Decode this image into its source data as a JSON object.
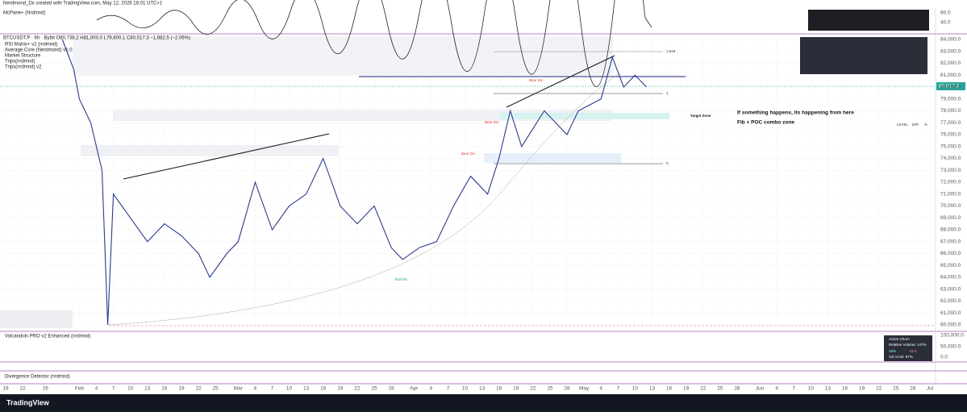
{
  "ui": {
    "credit": "Nerdmond_Dx created with TradingView.com, May 12, 2026 18:01 UTC+1",
    "top_pane": "McPane+ (Nrdmnd)",
    "top_axis": [
      "80.0",
      "40.0"
    ],
    "legend": [
      "RSI Matrix+ v2 (nrdmnd)",
      "Average Core (Nerdmond) v1.0",
      "Market Structure",
      "Trips(nrdmnd)",
      "Trips(nrdmnd) v2"
    ],
    "price_label": "80,017.3",
    "annotations": {
      "note1": "If something happens, its happening from here",
      "note2": "Fib + POC combo zone",
      "target": "Target Zone",
      "bear1": "Bear Div",
      "bear2": "Bear Div",
      "bear3": "Bear Div",
      "bull": "Bull Div",
      "fib_top": "1.618",
      "fib_mid": "1",
      "fib_low": "0"
    },
    "level_table": [
      "LEVEL",
      "D/R",
      "%"
    ],
    "volume_pane": "Volcandols PRO v2 Enhanced (nrdmnd)",
    "volume_axis": [
      "100,000.0",
      "50,000.0",
      "0.0"
    ],
    "churn": [
      "Active Churn",
      "Relative Volume: 147%",
      "49%",
      "51%",
      "Vol Accel: 87%"
    ],
    "div_pane": "Divergence Detector (nrdmnd)",
    "brand": "TradingView"
  },
  "chart_data": {
    "type": "line",
    "title": "BTCUSDT.P · 6h · Bybit  O80,738.2 H81,000.0 L79,800.1 C80,017.3 −1,682.5 (−2.06%)",
    "color": "#2a3a8f",
    "x": [
      "2026-01-29",
      "2026-01-31",
      "2026-02-01",
      "2026-02-03",
      "2026-02-05",
      "2026-02-06",
      "2026-02-07",
      "2026-02-10",
      "2026-02-13",
      "2026-02-16",
      "2026-02-19",
      "2026-02-22",
      "2026-02-24",
      "2026-02-27",
      "2026-03-01",
      "2026-03-04",
      "2026-03-07",
      "2026-03-10",
      "2026-03-13",
      "2026-03-16",
      "2026-03-19",
      "2026-03-22",
      "2026-03-25",
      "2026-03-28",
      "2026-03-30",
      "2026-04-02",
      "2026-04-05",
      "2026-04-08",
      "2026-04-11",
      "2026-04-14",
      "2026-04-16",
      "2026-04-18",
      "2026-04-20",
      "2026-04-22",
      "2026-04-24",
      "2026-04-26",
      "2026-04-28",
      "2026-04-30",
      "2026-05-02",
      "2026-05-04",
      "2026-05-06",
      "2026-05-08",
      "2026-05-10",
      "2026-05-12"
    ],
    "values": [
      84000,
      81500,
      79000,
      77000,
      73000,
      60000,
      71000,
      69000,
      67000,
      68500,
      67500,
      66000,
      64000,
      66000,
      67000,
      72000,
      68000,
      70000,
      71000,
      74000,
      70000,
      68500,
      70000,
      66500,
      65500,
      66500,
      67000,
      70000,
      72500,
      71000,
      74000,
      78000,
      75000,
      76500,
      78000,
      77000,
      76000,
      78000,
      78500,
      79000,
      82500,
      80000,
      81000,
      80017.3
    ],
    "xlim": [
      "2026-01-18",
      "2026-07-02"
    ],
    "xticks": [
      {
        "value": "2026-01-19",
        "label": "19"
      },
      {
        "value": "2026-01-22",
        "label": "22"
      },
      {
        "value": "2026-01-26",
        "label": "26"
      },
      {
        "value": "2026-02-01",
        "label": "Feb"
      },
      {
        "value": "2026-02-04",
        "label": "4"
      },
      {
        "value": "2026-02-07",
        "label": "7"
      },
      {
        "value": "2026-02-10",
        "label": "10"
      },
      {
        "value": "2026-02-13",
        "label": "13"
      },
      {
        "value": "2026-02-16",
        "label": "16"
      },
      {
        "value": "2026-02-19",
        "label": "19"
      },
      {
        "value": "2026-02-22",
        "label": "22"
      },
      {
        "value": "2026-02-25",
        "label": "25"
      },
      {
        "value": "2026-03-01",
        "label": "Mar"
      },
      {
        "value": "2026-03-04",
        "label": "4"
      },
      {
        "value": "2026-03-07",
        "label": "7"
      },
      {
        "value": "2026-03-10",
        "label": "10"
      },
      {
        "value": "2026-03-13",
        "label": "13"
      },
      {
        "value": "2026-03-16",
        "label": "16"
      },
      {
        "value": "2026-03-19",
        "label": "19"
      },
      {
        "value": "2026-03-22",
        "label": "22"
      },
      {
        "value": "2026-03-25",
        "label": "25"
      },
      {
        "value": "2026-03-28",
        "label": "28"
      },
      {
        "value": "2026-04-01",
        "label": "Apr"
      },
      {
        "value": "2026-04-04",
        "label": "4"
      },
      {
        "value": "2026-04-07",
        "label": "7"
      },
      {
        "value": "2026-04-10",
        "label": "10"
      },
      {
        "value": "2026-04-13",
        "label": "13"
      },
      {
        "value": "2026-04-16",
        "label": "16"
      },
      {
        "value": "2026-04-19",
        "label": "19"
      },
      {
        "value": "2026-04-22",
        "label": "22"
      },
      {
        "value": "2026-04-25",
        "label": "25"
      },
      {
        "value": "2026-04-28",
        "label": "28"
      },
      {
        "value": "2026-05-01",
        "label": "May"
      },
      {
        "value": "2026-05-04",
        "label": "4"
      },
      {
        "value": "2026-05-07",
        "label": "7"
      },
      {
        "value": "2026-05-10",
        "label": "10"
      },
      {
        "value": "2026-05-13",
        "label": "13"
      },
      {
        "value": "2026-05-16",
        "label": "16"
      },
      {
        "value": "2026-05-19",
        "label": "19"
      },
      {
        "value": "2026-05-22",
        "label": "22"
      },
      {
        "value": "2026-05-25",
        "label": "25"
      },
      {
        "value": "2026-05-28",
        "label": "28"
      },
      {
        "value": "2026-06-01",
        "label": "Jun"
      },
      {
        "value": "2026-06-04",
        "label": "4"
      },
      {
        "value": "2026-06-07",
        "label": "7"
      },
      {
        "value": "2026-06-10",
        "label": "10"
      },
      {
        "value": "2026-06-13",
        "label": "13"
      },
      {
        "value": "2026-06-16",
        "label": "16"
      },
      {
        "value": "2026-06-19",
        "label": "19"
      },
      {
        "value": "2026-06-22",
        "label": "22"
      },
      {
        "value": "2026-06-25",
        "label": "25"
      },
      {
        "value": "2026-06-28",
        "label": "28"
      },
      {
        "value": "2026-07-01",
        "label": "Jul"
      }
    ],
    "ylim": [
      60000,
      84000
    ],
    "yticks": [
      {
        "value": 60000,
        "label": "60,000.0"
      },
      {
        "value": 61000,
        "label": "61,000.0"
      },
      {
        "value": 62000,
        "label": "62,000.0"
      },
      {
        "value": 63000,
        "label": "63,000.0"
      },
      {
        "value": 64000,
        "label": "64,000.0"
      },
      {
        "value": 65000,
        "label": "65,000.0"
      },
      {
        "value": 66000,
        "label": "66,000.0"
      },
      {
        "value": 67000,
        "label": "67,000.0"
      },
      {
        "value": 68000,
        "label": "68,000.0"
      },
      {
        "value": 69000,
        "label": "69,000.0"
      },
      {
        "value": 70000,
        "label": "70,000.0"
      },
      {
        "value": 71000,
        "label": "71,000.0"
      },
      {
        "value": 72000,
        "label": "72,000.0"
      },
      {
        "value": 73000,
        "label": "73,000.0"
      },
      {
        "value": 74000,
        "label": "74,000.0"
      },
      {
        "value": 75000,
        "label": "75,000.0"
      },
      {
        "value": 76000,
        "label": "76,000.0"
      },
      {
        "value": 77000,
        "label": "77,000.0"
      },
      {
        "value": 78000,
        "label": "78,000.0"
      },
      {
        "value": 79000,
        "label": "79,000.0"
      },
      {
        "value": 80000,
        "label": "80,000.0"
      },
      {
        "value": 81000,
        "label": "81,000.0"
      },
      {
        "value": 82000,
        "label": "82,000.0"
      },
      {
        "value": 83000,
        "label": "83,000.0"
      },
      {
        "value": 84000,
        "label": "84,000.0"
      }
    ],
    "grid": true
  }
}
